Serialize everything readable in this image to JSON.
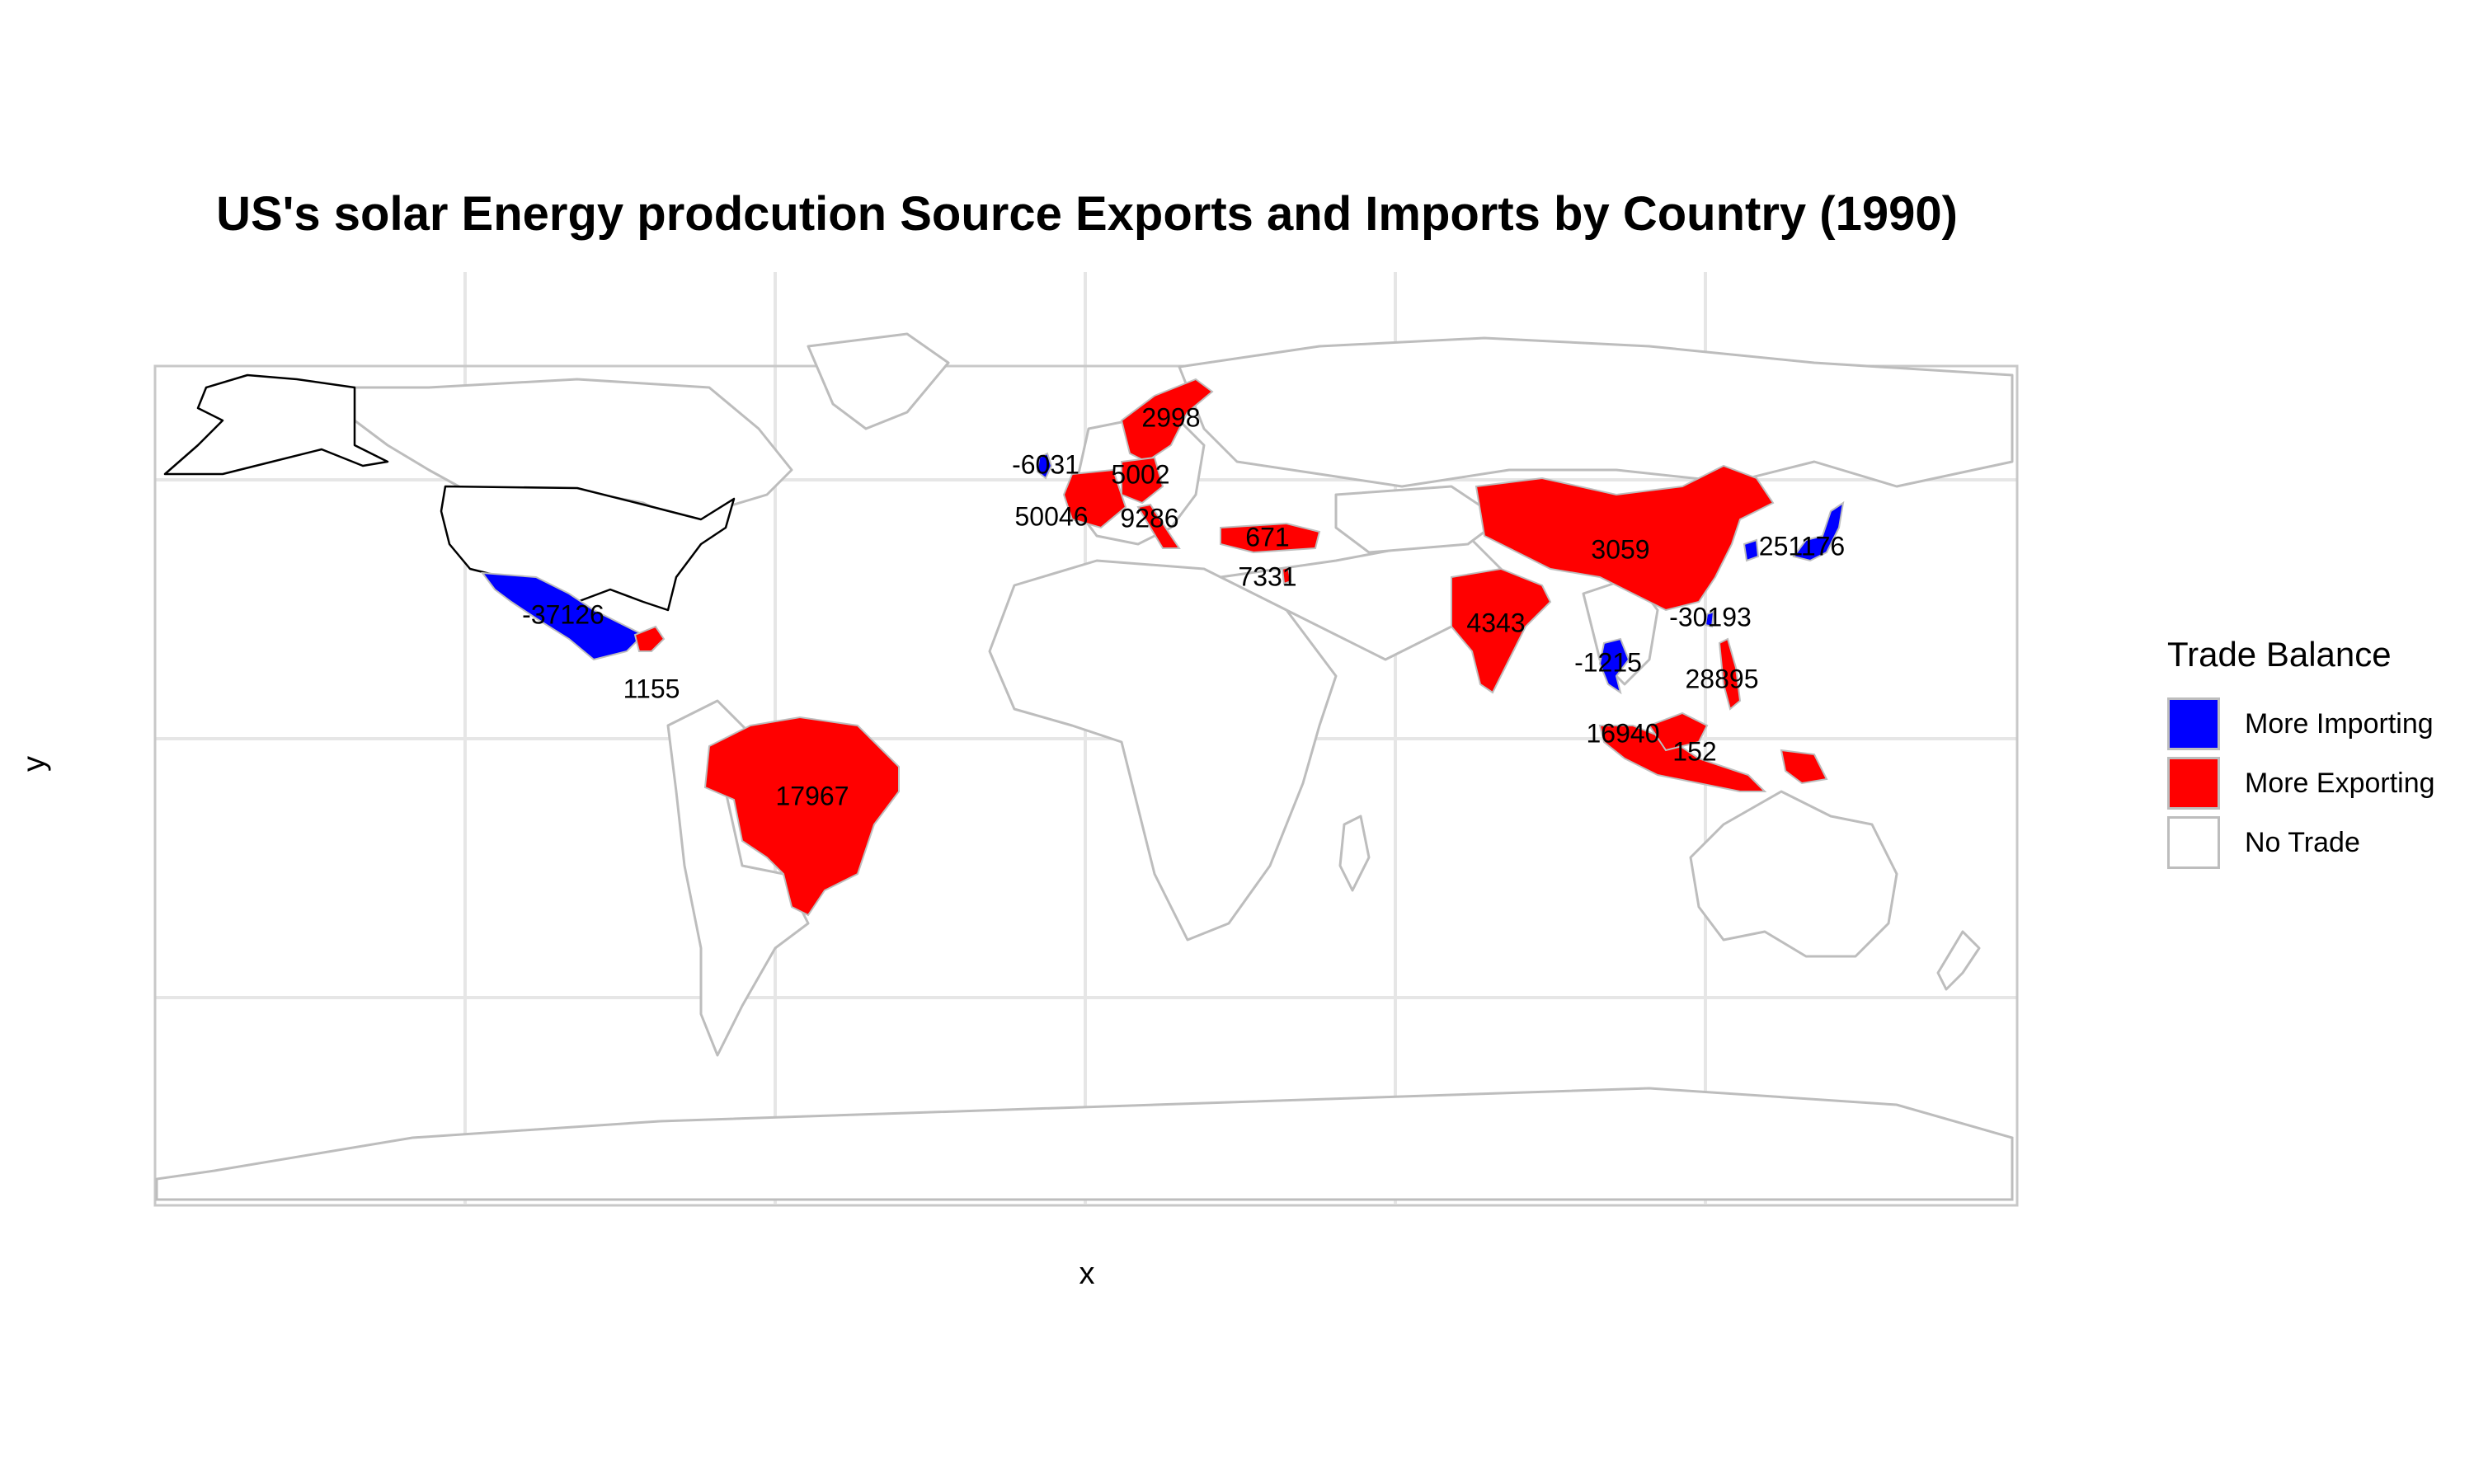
{
  "title": "US's solar Energy prodcution Source Exports and Imports by Country (1990)",
  "x_label": "x",
  "y_label": "y",
  "legend": {
    "title": "Trade Balance",
    "items": [
      {
        "label": "More Importing",
        "color": "#0000ff"
      },
      {
        "label": "More Exporting",
        "color": "#ff0000"
      },
      {
        "label": "No Trade",
        "color": "#ffffff"
      }
    ]
  },
  "country_values": [
    {
      "country": "Mexico",
      "value": "-37126"
    },
    {
      "country": "Central America",
      "value": "1155"
    },
    {
      "country": "Brazil",
      "value": "17967"
    },
    {
      "country": "United Kingdom",
      "value": "-6031"
    },
    {
      "country": "Norway/Sweden",
      "value": "2998"
    },
    {
      "country": "Germany",
      "value": "5002"
    },
    {
      "country": "France",
      "value": "50046"
    },
    {
      "country": "Italy",
      "value": "9286"
    },
    {
      "country": "Turkey",
      "value": "671"
    },
    {
      "country": "Israel",
      "value": "7331"
    },
    {
      "country": "China",
      "value": "3059"
    },
    {
      "country": "India",
      "value": "4343"
    },
    {
      "country": "Japan/South Korea",
      "value": "251176"
    },
    {
      "country": "Taiwan",
      "value": "-30193"
    },
    {
      "country": "Thailand",
      "value": "-1215"
    },
    {
      "country": "Philippines",
      "value": "28895"
    },
    {
      "country": "Malaysia",
      "value": "16940"
    },
    {
      "country": "Indonesia",
      "value": "152"
    }
  ]
}
